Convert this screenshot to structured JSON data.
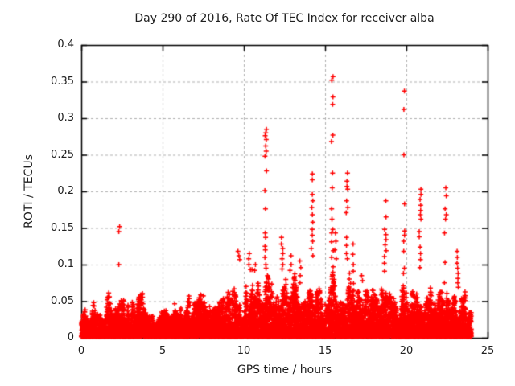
{
  "chart_data": {
    "type": "scatter",
    "title": "Day 290 of 2016, Rate Of TEC Index for receiver alba",
    "xlabel": "GPS time / hours",
    "ylabel": "ROTI / TECUs",
    "xlim": [
      0,
      25
    ],
    "ylim": [
      0,
      0.4
    ],
    "xticks": [
      "0",
      "5",
      "10",
      "15",
      "20",
      "25"
    ],
    "yticks": [
      "0",
      "0.05",
      "0.1",
      "0.15",
      "0.2",
      "0.25",
      "0.3",
      "0.35",
      "0.4"
    ],
    "grid": true,
    "legend": "none",
    "marker": "plus",
    "colors": {
      "points": "#ff0000",
      "grid": "#b0b0b0",
      "frame": "#000000",
      "text": "#202020",
      "background": "#ffffff"
    },
    "data_span_hours": [
      0,
      24
    ],
    "baseline": {
      "description": "dense noise band of ~30s-rate ROTI samples, bulk between 0 and 0.04 TECU with bursty envelope",
      "n_points": 10000,
      "seed": 290,
      "floor": 0.0015,
      "envelope": [
        [
          0,
          0.03
        ],
        [
          0.5,
          0.045
        ],
        [
          1,
          0.055
        ],
        [
          1.5,
          0.062
        ],
        [
          2,
          0.055
        ],
        [
          2.5,
          0.06
        ],
        [
          3,
          0.045
        ],
        [
          3.5,
          0.055
        ],
        [
          4,
          0.06
        ],
        [
          4.5,
          0.035
        ],
        [
          5,
          0.045
        ],
        [
          5.5,
          0.042
        ],
        [
          6,
          0.05
        ],
        [
          6.5,
          0.062
        ],
        [
          7,
          0.055
        ],
        [
          7.5,
          0.06
        ],
        [
          8,
          0.05
        ],
        [
          8.5,
          0.055
        ],
        [
          9,
          0.06
        ],
        [
          9.5,
          0.072
        ],
        [
          10,
          0.068
        ],
        [
          10.5,
          0.085
        ],
        [
          11,
          0.075
        ],
        [
          11.5,
          0.095
        ],
        [
          12,
          0.06
        ],
        [
          12.5,
          0.1
        ],
        [
          13,
          0.08
        ],
        [
          13.5,
          0.085
        ],
        [
          14,
          0.065
        ],
        [
          14.5,
          0.075
        ],
        [
          15,
          0.05
        ],
        [
          15.5,
          0.09
        ],
        [
          16,
          0.06
        ],
        [
          16.5,
          0.095
        ],
        [
          17,
          0.065
        ],
        [
          17.5,
          0.08
        ],
        [
          18,
          0.065
        ],
        [
          18.5,
          0.075
        ],
        [
          19,
          0.065
        ],
        [
          19.5,
          0.06
        ],
        [
          20,
          0.07
        ],
        [
          20.5,
          0.065
        ],
        [
          21,
          0.06
        ],
        [
          21.5,
          0.065
        ],
        [
          22,
          0.06
        ],
        [
          22.5,
          0.07
        ],
        [
          23,
          0.065
        ],
        [
          23.5,
          0.058
        ],
        [
          24,
          0.05
        ]
      ]
    },
    "spikes": [
      {
        "x": 2.35,
        "values": [
          0.152,
          0.145,
          0.1
        ]
      },
      {
        "x": 9.7,
        "values": [
          0.118,
          0.112,
          0.107
        ]
      },
      {
        "x": 10.35,
        "values": [
          0.115,
          0.108,
          0.1,
          0.093
        ]
      },
      {
        "x": 10.7,
        "values": [
          0.1,
          0.092
        ]
      },
      {
        "x": 11.35,
        "values": [
          0.285,
          0.28,
          0.276,
          0.271,
          0.262,
          0.255,
          0.248,
          0.228,
          0.201,
          0.176,
          0.143,
          0.137,
          0.125,
          0.12,
          0.11,
          0.1,
          0.095
        ]
      },
      {
        "x": 12.35,
        "values": [
          0.137,
          0.128,
          0.122,
          0.115,
          0.108,
          0.1,
          0.094
        ]
      },
      {
        "x": 12.9,
        "values": [
          0.112,
          0.1,
          0.092
        ]
      },
      {
        "x": 13.5,
        "values": [
          0.105,
          0.096,
          0.085,
          0.075
        ]
      },
      {
        "x": 14.2,
        "values": [
          0.224,
          0.216,
          0.196,
          0.187,
          0.178,
          0.168,
          0.158,
          0.148,
          0.14,
          0.132,
          0.122,
          0.112
        ]
      },
      {
        "x": 15.45,
        "values": [
          0.357,
          0.352,
          0.329,
          0.319,
          0.277,
          0.268,
          0.225,
          0.205,
          0.176,
          0.162,
          0.148,
          0.143,
          0.131,
          0.119,
          0.11,
          0.097,
          0.086
        ]
      },
      {
        "x": 15.65,
        "values": [
          0.143,
          0.132,
          0.12,
          0.108
        ]
      },
      {
        "x": 16.35,
        "values": [
          0.225,
          0.214,
          0.207,
          0.203,
          0.187,
          0.178,
          0.171,
          0.137,
          0.126,
          0.115,
          0.108
        ]
      },
      {
        "x": 16.7,
        "values": [
          0.128,
          0.114,
          0.1,
          0.091
        ]
      },
      {
        "x": 17.3,
        "values": [
          0.085,
          0.078
        ]
      },
      {
        "x": 18.7,
        "values": [
          0.187,
          0.165,
          0.148,
          0.141,
          0.134,
          0.127,
          0.119,
          0.111,
          0.102,
          0.091
        ]
      },
      {
        "x": 19.85,
        "values": [
          0.337,
          0.312,
          0.25,
          0.183,
          0.146,
          0.14,
          0.132,
          0.118,
          0.095,
          0.088,
          0.071
        ]
      },
      {
        "x": 20.85,
        "values": [
          0.203,
          0.196,
          0.189,
          0.181,
          0.174,
          0.168,
          0.162,
          0.145,
          0.138,
          0.124,
          0.115,
          0.107,
          0.096
        ]
      },
      {
        "x": 22.4,
        "values": [
          0.205,
          0.194,
          0.176,
          0.168,
          0.162,
          0.143,
          0.103,
          0.075
        ]
      },
      {
        "x": 23.15,
        "values": [
          0.118,
          0.11,
          0.102,
          0.095,
          0.088,
          0.081,
          0.075,
          0.069
        ]
      }
    ]
  }
}
